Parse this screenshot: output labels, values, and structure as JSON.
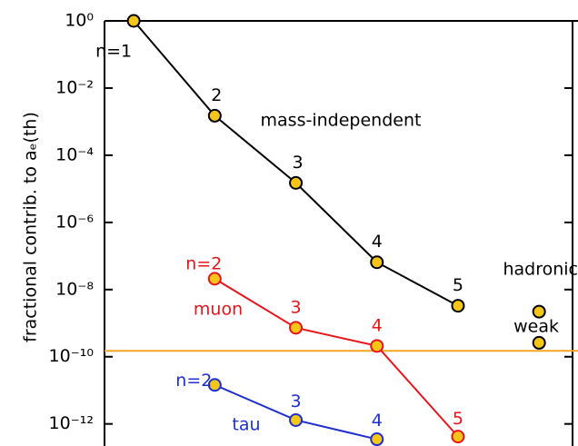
{
  "chart_data": {
    "type": "line",
    "ylabel": "fractional contrib. to aₑ(th)",
    "x": [
      1,
      2,
      3,
      4,
      5,
      6
    ],
    "xlim": [
      0.64,
      6.48
    ],
    "ylim": [
      2.2e-13,
      1
    ],
    "log_y": true,
    "yticks": [
      {
        "value": 1,
        "label": "10⁰"
      },
      {
        "value": 0.01,
        "label": "10⁻²"
      },
      {
        "value": 0.0001,
        "label": "10⁻⁴"
      },
      {
        "value": 1e-06,
        "label": "10⁻⁶"
      },
      {
        "value": 1e-08,
        "label": "10⁻⁸"
      },
      {
        "value": 1e-10,
        "label": "10⁻¹⁰"
      },
      {
        "value": 1e-12,
        "label": "10⁻¹²"
      }
    ],
    "marker_color": "#f5c518",
    "hline": {
      "value": 1.5e-10,
      "color": "#f5a623"
    },
    "series": [
      {
        "name": "mass-independent",
        "color": "#000000",
        "line": true,
        "values": [
          1,
          0.0015,
          1.5e-05,
          6.5e-08,
          3.3e-09,
          null
        ],
        "labels": [
          "n=1",
          "2",
          "3",
          "4",
          "5",
          null
        ]
      },
      {
        "name": "muon",
        "color": "#e8141c",
        "line": true,
        "values": [
          null,
          2.1e-08,
          7.3e-10,
          2.1e-10,
          4.2e-13,
          null
        ],
        "labels": [
          null,
          "n=2",
          "3",
          "4",
          "5",
          null
        ]
      },
      {
        "name": "tau",
        "color": "#1f2fcf",
        "line": true,
        "values": [
          null,
          1.45e-11,
          1.3e-12,
          3.5e-13,
          null,
          null
        ],
        "labels": [
          null,
          "n=2",
          "3",
          "4",
          null,
          null
        ]
      },
      {
        "name": "hadronic",
        "color": "#000000",
        "line": false,
        "values": [
          null,
          null,
          null,
          null,
          null,
          2.2e-09
        ]
      },
      {
        "name": "weak",
        "color": "#000000",
        "line": false,
        "values": [
          null,
          null,
          null,
          null,
          null,
          2.6e-10
        ]
      }
    ]
  }
}
